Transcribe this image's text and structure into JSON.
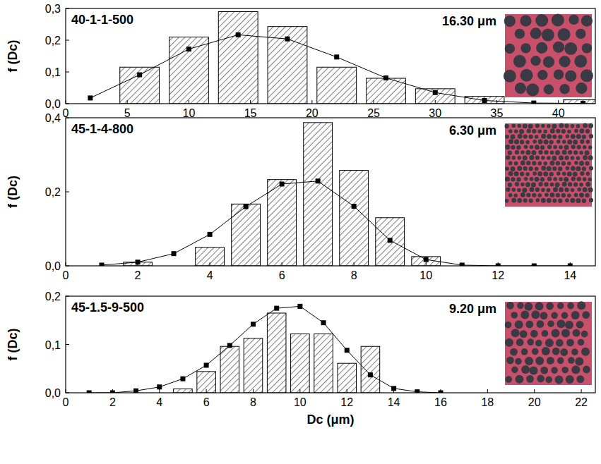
{
  "chart_data": [
    {
      "type": "histogram",
      "title": "40-1-1-500",
      "annotation": "16.30 μm",
      "ylabel": "f (Dc)",
      "bins": [
        4,
        8,
        12,
        16,
        20,
        24,
        28,
        32,
        36,
        40,
        44
      ],
      "values": [
        0.115,
        0.21,
        0.29,
        0.243,
        0.115,
        0.08,
        0.047,
        0.023,
        0,
        0.012
      ],
      "color": "#000000",
      "series": [
        {
          "type": "line",
          "color": "#000000",
          "marker": "square",
          "line_style": "solid",
          "x": [
            2,
            6,
            10,
            14,
            18,
            22,
            26,
            30,
            34,
            38,
            42
          ],
          "values": [
            0.018,
            0.091,
            0.172,
            0.217,
            0.204,
            0.147,
            0.081,
            0.035,
            0.01,
            0.002,
            0.001
          ]
        }
      ],
      "xlim": [
        0,
        43
      ],
      "xticks": [
        0,
        5,
        10,
        15,
        20,
        25,
        30,
        35,
        40
      ],
      "ylim": [
        0,
        0.3
      ],
      "yticks": [
        {
          "value": 0,
          "label": "0,0"
        },
        {
          "value": 0.1,
          "label": "0,1"
        },
        {
          "value": 0.2,
          "label": "0,2"
        },
        {
          "value": 0.3,
          "label": "0,3"
        }
      ]
    },
    {
      "type": "histogram",
      "title": "45-1-4-800",
      "annotation": "6.30 μm",
      "ylabel": "f (Dc)",
      "bins": [
        1.5,
        2.5,
        3.5,
        4.5,
        5.5,
        6.5,
        7.5,
        8.5,
        9.5,
        10.5
      ],
      "values": [
        0.01,
        0,
        0.05,
        0.167,
        0.233,
        0.387,
        0.258,
        0.13,
        0.025
      ],
      "color": "#000000",
      "series": [
        {
          "type": "line",
          "color": "#000000",
          "marker": "square",
          "line_style": "solid",
          "x": [
            1,
            2,
            3,
            4,
            5,
            6,
            7,
            8,
            9,
            10,
            11,
            12,
            13,
            14
          ],
          "values": [
            0.002,
            0.01,
            0.033,
            0.085,
            0.16,
            0.221,
            0.229,
            0.161,
            0.069,
            0.017,
            0.002,
            0,
            0,
            0
          ]
        }
      ],
      "xlim": [
        0,
        14.7
      ],
      "xticks": [
        0,
        2,
        4,
        6,
        8,
        10,
        12,
        14
      ],
      "ylim": [
        0,
        0.4
      ],
      "yticks": [
        {
          "value": 0,
          "label": "0,0"
        },
        {
          "value": 0.2,
          "label": "0,2"
        },
        {
          "value": 0.4,
          "label": "0,4"
        }
      ]
    },
    {
      "type": "histogram",
      "title": "45-1.5-9-500",
      "annotation": "9.20 μm",
      "ylabel": "f (Dc)",
      "xlabel": "Dc (μm)",
      "bins": [
        4.5,
        5.5,
        6.5,
        7.5,
        8.5,
        9.5,
        10.5,
        11.5,
        12.5,
        13.5
      ],
      "values": [
        0.008,
        0.044,
        0.096,
        0.113,
        0.165,
        0.122,
        0.122,
        0.061,
        0.096
      ],
      "color": "#000000",
      "series": [
        {
          "type": "line",
          "color": "#000000",
          "marker": "square",
          "line_style": "solid",
          "x": [
            1,
            2,
            3,
            4,
            5,
            6,
            7,
            8,
            9,
            10,
            11,
            12,
            13,
            14,
            15,
            16
          ],
          "values": [
            0,
            0,
            0.004,
            0.012,
            0.029,
            0.057,
            0.098,
            0.142,
            0.175,
            0.179,
            0.145,
            0.088,
            0.037,
            0.009,
            0.002,
            0
          ]
        }
      ],
      "xlim": [
        0,
        22.6
      ],
      "xticks": [
        0,
        2,
        4,
        6,
        8,
        10,
        12,
        14,
        16,
        18,
        20,
        22
      ],
      "ylim": [
        0,
        0.2
      ],
      "yticks": [
        {
          "value": 0,
          "label": "0,0"
        },
        {
          "value": 0.1,
          "label": "0,1"
        },
        {
          "value": 0.2,
          "label": "0,2"
        }
      ]
    }
  ]
}
